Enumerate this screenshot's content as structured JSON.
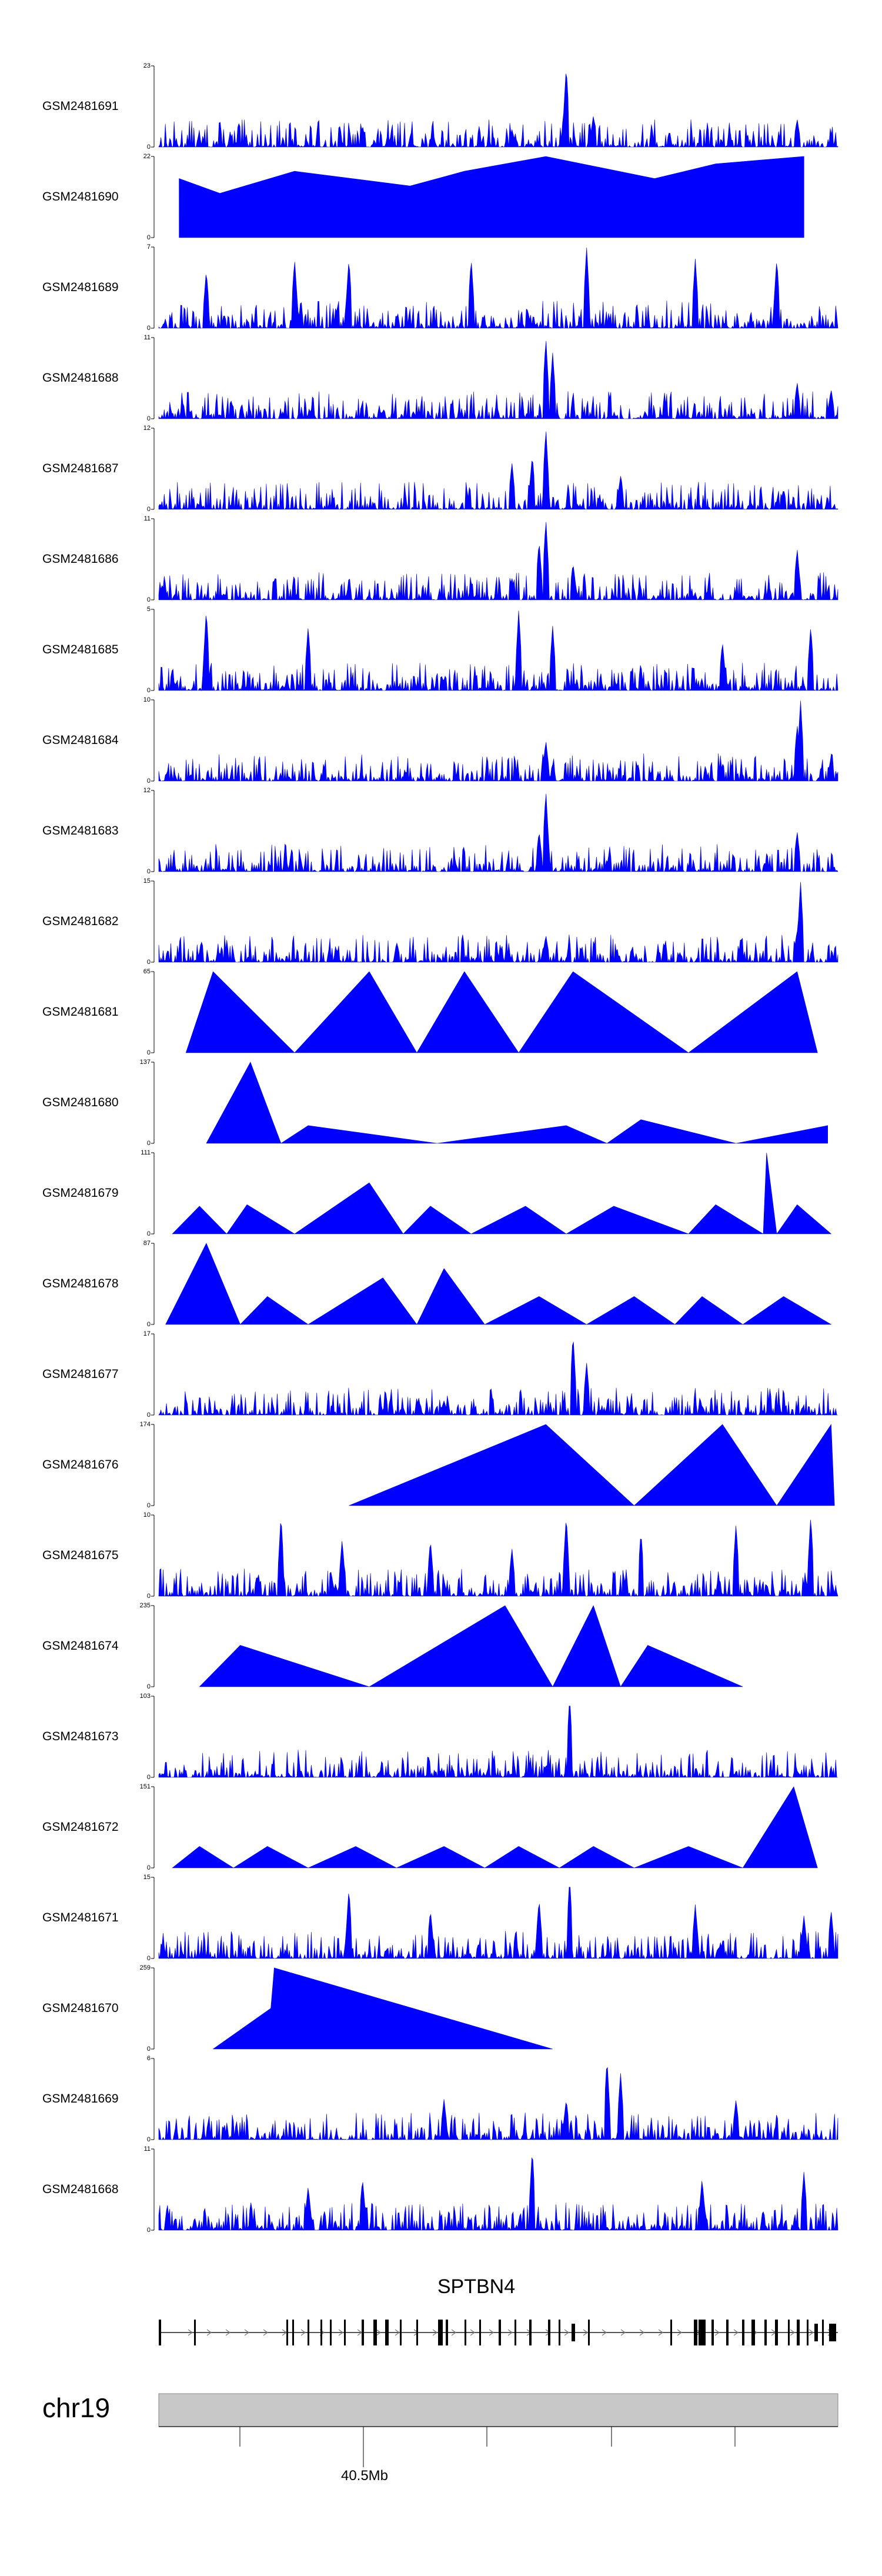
{
  "chart_data": {
    "type": "area",
    "description_region": "chr19",
    "gene": "SPTBN4",
    "axis": {
      "chromosome": "chr19",
      "tick_label": "40.5Mb"
    },
    "tracks": [
      {
        "sample": "GSM2481691",
        "ymin": 0,
        "ymax": 23,
        "pattern": "dense",
        "peaks": [
          [
            0.6,
            23
          ],
          [
            0.64,
            9
          ],
          [
            0.94,
            8
          ],
          [
            0.3,
            6
          ],
          [
            0.52,
            5
          ]
        ]
      },
      {
        "sample": "GSM2481690",
        "ymin": 0,
        "ymax": 22,
        "pattern": "sparse",
        "peaks": [
          [
            0.03,
            16
          ],
          [
            0.09,
            12
          ],
          [
            0.2,
            18
          ],
          [
            0.37,
            14
          ],
          [
            0.45,
            18
          ],
          [
            0.57,
            22
          ],
          [
            0.73,
            16
          ],
          [
            0.82,
            20
          ],
          [
            0.95,
            22
          ]
        ]
      },
      {
        "sample": "GSM2481689",
        "ymin": 0,
        "ymax": 7,
        "pattern": "dense",
        "peaks": [
          [
            0.07,
            5
          ],
          [
            0.2,
            6
          ],
          [
            0.28,
            6
          ],
          [
            0.46,
            6
          ],
          [
            0.63,
            7
          ],
          [
            0.79,
            6
          ],
          [
            0.91,
            6
          ]
        ]
      },
      {
        "sample": "GSM2481688",
        "ymin": 0,
        "ymax": 11,
        "pattern": "dense",
        "peaks": [
          [
            0.57,
            11
          ],
          [
            0.58,
            9
          ],
          [
            0.94,
            5
          ],
          [
            0.99,
            4
          ]
        ]
      },
      {
        "sample": "GSM2481687",
        "ymin": 0,
        "ymax": 12,
        "pattern": "dense",
        "peaks": [
          [
            0.57,
            12
          ],
          [
            0.55,
            8
          ],
          [
            0.52,
            7
          ],
          [
            0.68,
            5
          ],
          [
            0.92,
            3
          ]
        ]
      },
      {
        "sample": "GSM2481686",
        "ymin": 0,
        "ymax": 11,
        "pattern": "dense",
        "peaks": [
          [
            0.57,
            11
          ],
          [
            0.56,
            8
          ],
          [
            0.61,
            5
          ],
          [
            0.94,
            7
          ],
          [
            0.52,
            3
          ]
        ]
      },
      {
        "sample": "GSM2481685",
        "ymin": 0,
        "ymax": 5,
        "pattern": "dense",
        "peaks": [
          [
            0.07,
            5
          ],
          [
            0.22,
            4
          ],
          [
            0.53,
            5
          ],
          [
            0.58,
            4
          ],
          [
            0.83,
            3
          ],
          [
            0.96,
            4
          ]
        ]
      },
      {
        "sample": "GSM2481684",
        "ymin": 0,
        "ymax": 10,
        "pattern": "dense",
        "peaks": [
          [
            0.945,
            10
          ],
          [
            0.94,
            7
          ],
          [
            0.57,
            5
          ],
          [
            0.99,
            3
          ]
        ]
      },
      {
        "sample": "GSM2481683",
        "ymin": 0,
        "ymax": 12,
        "pattern": "dense",
        "peaks": [
          [
            0.57,
            12
          ],
          [
            0.56,
            6
          ],
          [
            0.94,
            6
          ]
        ]
      },
      {
        "sample": "GSM2481682",
        "ymin": 0,
        "ymax": 15,
        "pattern": "dense",
        "peaks": [
          [
            0.945,
            15
          ],
          [
            0.57,
            5
          ],
          [
            0.94,
            6
          ]
        ]
      },
      {
        "sample": "GSM2481681",
        "ymin": 0,
        "ymax": 65,
        "pattern": "sparse",
        "peaks": [
          [
            0.04,
            0
          ],
          [
            0.08,
            65
          ],
          [
            0.2,
            0
          ],
          [
            0.31,
            65
          ],
          [
            0.38,
            0
          ],
          [
            0.45,
            65
          ],
          [
            0.53,
            0
          ],
          [
            0.61,
            65
          ],
          [
            0.78,
            0
          ],
          [
            0.94,
            65
          ],
          [
            0.97,
            0
          ]
        ]
      },
      {
        "sample": "GSM2481680",
        "ymin": 0,
        "ymax": 137,
        "pattern": "sparse",
        "peaks": [
          [
            0.07,
            0
          ],
          [
            0.135,
            137
          ],
          [
            0.18,
            0
          ],
          [
            0.22,
            30
          ],
          [
            0.41,
            0
          ],
          [
            0.6,
            30
          ],
          [
            0.66,
            0
          ],
          [
            0.71,
            40
          ],
          [
            0.85,
            0
          ],
          [
            0.985,
            30
          ]
        ]
      },
      {
        "sample": "GSM2481679",
        "ymin": 0,
        "ymax": 111,
        "pattern": "sparse",
        "peaks": [
          [
            0.02,
            0
          ],
          [
            0.06,
            38
          ],
          [
            0.1,
            0
          ],
          [
            0.13,
            40
          ],
          [
            0.2,
            0
          ],
          [
            0.31,
            70
          ],
          [
            0.36,
            0
          ],
          [
            0.4,
            38
          ],
          [
            0.46,
            0
          ],
          [
            0.54,
            38
          ],
          [
            0.6,
            0
          ],
          [
            0.67,
            38
          ],
          [
            0.78,
            0
          ],
          [
            0.82,
            40
          ],
          [
            0.89,
            0
          ],
          [
            0.895,
            111
          ],
          [
            0.91,
            0
          ],
          [
            0.94,
            40
          ],
          [
            0.99,
            0
          ]
        ]
      },
      {
        "sample": "GSM2481678",
        "ymin": 0,
        "ymax": 87,
        "pattern": "sparse",
        "peaks": [
          [
            0.01,
            0
          ],
          [
            0.07,
            87
          ],
          [
            0.12,
            0
          ],
          [
            0.16,
            30
          ],
          [
            0.22,
            0
          ],
          [
            0.33,
            50
          ],
          [
            0.38,
            0
          ],
          [
            0.42,
            60
          ],
          [
            0.48,
            0
          ],
          [
            0.56,
            30
          ],
          [
            0.63,
            0
          ],
          [
            0.7,
            30
          ],
          [
            0.76,
            0
          ],
          [
            0.8,
            30
          ],
          [
            0.86,
            0
          ],
          [
            0.92,
            30
          ],
          [
            0.99,
            0
          ]
        ]
      },
      {
        "sample": "GSM2481677",
        "ymin": 0,
        "ymax": 17,
        "pattern": "dense",
        "peaks": [
          [
            0.61,
            17
          ],
          [
            0.63,
            11
          ],
          [
            0.42,
            3
          ],
          [
            0.8,
            2
          ]
        ]
      },
      {
        "sample": "GSM2481676",
        "ymin": 0,
        "ymax": 174,
        "pattern": "sparse",
        "peaks": [
          [
            0.28,
            0
          ],
          [
            0.57,
            174
          ],
          [
            0.7,
            0
          ],
          [
            0.83,
            174
          ],
          [
            0.91,
            0
          ],
          [
            0.99,
            174
          ],
          [
            0.995,
            0
          ]
        ]
      },
      {
        "sample": "GSM2481675",
        "ymin": 0,
        "ymax": 10,
        "pattern": "dense",
        "peaks": [
          [
            0.18,
            10
          ],
          [
            0.27,
            7
          ],
          [
            0.4,
            7
          ],
          [
            0.52,
            6
          ],
          [
            0.6,
            10
          ],
          [
            0.71,
            8
          ],
          [
            0.85,
            9
          ],
          [
            0.96,
            10
          ]
        ]
      },
      {
        "sample": "GSM2481674",
        "ymin": 0,
        "ymax": 235,
        "pattern": "sparse",
        "peaks": [
          [
            0.06,
            0
          ],
          [
            0.12,
            120
          ],
          [
            0.31,
            0
          ],
          [
            0.51,
            235
          ],
          [
            0.58,
            0
          ],
          [
            0.64,
            235
          ],
          [
            0.68,
            0
          ],
          [
            0.72,
            120
          ],
          [
            0.86,
            0
          ]
        ]
      },
      {
        "sample": "GSM2481673",
        "ymin": 0,
        "ymax": 103,
        "pattern": "dense",
        "peaks": [
          [
            0.605,
            103
          ],
          [
            0.57,
            15
          ],
          [
            0.94,
            8
          ]
        ]
      },
      {
        "sample": "GSM2481672",
        "ymin": 0,
        "ymax": 151,
        "pattern": "sparse",
        "peaks": [
          [
            0.02,
            0
          ],
          [
            0.06,
            40
          ],
          [
            0.11,
            0
          ],
          [
            0.16,
            40
          ],
          [
            0.22,
            0
          ],
          [
            0.29,
            40
          ],
          [
            0.35,
            0
          ],
          [
            0.42,
            40
          ],
          [
            0.48,
            0
          ],
          [
            0.53,
            40
          ],
          [
            0.59,
            0
          ],
          [
            0.64,
            40
          ],
          [
            0.7,
            0
          ],
          [
            0.78,
            40
          ],
          [
            0.86,
            0
          ],
          [
            0.935,
            151
          ],
          [
            0.97,
            0
          ]
        ]
      },
      {
        "sample": "GSM2481671",
        "ymin": 0,
        "ymax": 15,
        "pattern": "dense",
        "peaks": [
          [
            0.28,
            13
          ],
          [
            0.4,
            9
          ],
          [
            0.56,
            11
          ],
          [
            0.605,
            15
          ],
          [
            0.79,
            10
          ],
          [
            0.95,
            8
          ],
          [
            0.99,
            9
          ]
        ]
      },
      {
        "sample": "GSM2481670",
        "ymin": 0,
        "ymax": 259,
        "pattern": "sparse",
        "peaks": [
          [
            0.08,
            0
          ],
          [
            0.165,
            130
          ],
          [
            0.17,
            259
          ],
          [
            0.58,
            0
          ]
        ]
      },
      {
        "sample": "GSM2481669",
        "ymin": 0,
        "ymax": 6,
        "pattern": "dense",
        "peaks": [
          [
            0.66,
            6
          ],
          [
            0.68,
            5
          ],
          [
            0.6,
            3
          ],
          [
            0.42,
            3
          ],
          [
            0.85,
            3
          ]
        ]
      },
      {
        "sample": "GSM2481668",
        "ymin": 0,
        "ymax": 11,
        "pattern": "dense",
        "peaks": [
          [
            0.55,
            11
          ],
          [
            0.3,
            7
          ],
          [
            0.22,
            6
          ],
          [
            0.8,
            7
          ],
          [
            0.95,
            8
          ]
        ]
      }
    ]
  }
}
